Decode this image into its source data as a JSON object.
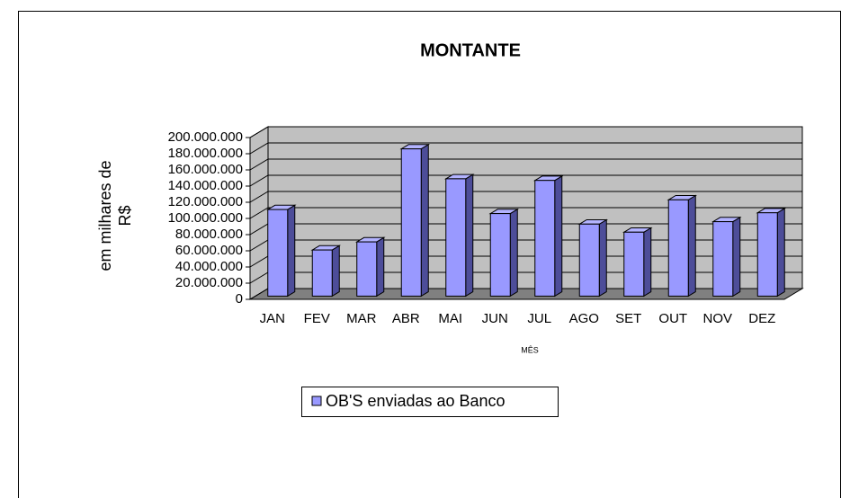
{
  "chart_data": {
    "type": "bar3d",
    "title": "MONTANTE",
    "x_label": "MÊS",
    "y_label": "em milhares de R$",
    "categories": [
      "JAN",
      "FEV",
      "MAR",
      "ABR",
      "MAI",
      "JUN",
      "JUL",
      "AGO",
      "SET",
      "OUT",
      "NOV",
      "DEZ"
    ],
    "series": [
      {
        "name": "OB'S enviadas ao Banco",
        "color": "#9999ff",
        "values": [
          107000000,
          57000000,
          67000000,
          182000000,
          145000000,
          102000000,
          143000000,
          89000000,
          79000000,
          119000000,
          92000000,
          103000000
        ]
      }
    ],
    "ylim": [
      0,
      200000000
    ],
    "yticks": [
      0,
      {
        "value": 20000000,
        "label": "20.000.000"
      },
      {
        "value": 40000000,
        "label": "40.000.000"
      },
      {
        "value": 60000000,
        "label": "60.000.000"
      },
      {
        "value": 80000000,
        "label": "80.000.000"
      },
      {
        "value": 100000000,
        "label": "100.000.000"
      },
      {
        "value": 120000000,
        "label": "120.000.000"
      },
      {
        "value": 140000000,
        "label": "140.000.000"
      },
      {
        "value": 160000000,
        "label": "160.000.000"
      },
      {
        "value": 180000000,
        "label": "180.000.000"
      },
      {
        "value": 200000000,
        "label": "200.000.000"
      }
    ],
    "grid": true,
    "legend": "bottom"
  }
}
